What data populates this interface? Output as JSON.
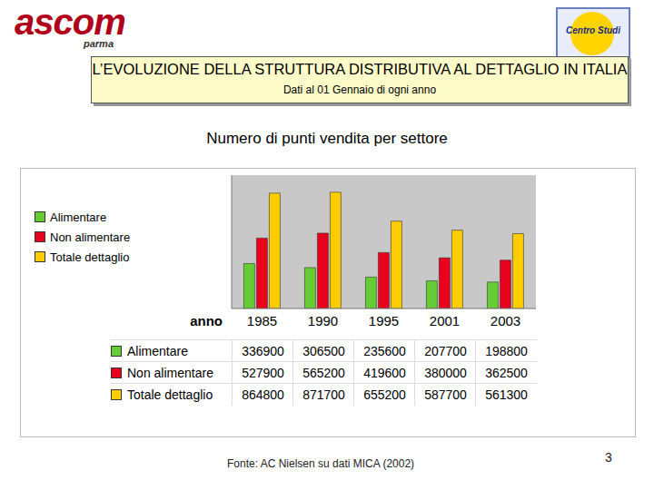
{
  "header": {
    "logo_left": "ascom",
    "logo_left_sub": "parma",
    "logo_right": "Centro Studi",
    "title": "L’EVOLUZIONE DELLA STRUTTURA DISTRIBUTIVA AL DETTAGLIO IN ITALIA",
    "subtitle": "Dati al 01 Gennaio di ogni anno"
  },
  "chart_data": {
    "type": "bar",
    "title": "Numero di punti vendita per settore",
    "categories": [
      "1985",
      "1990",
      "1995",
      "2001",
      "2003"
    ],
    "series": [
      {
        "name": "Alimentare",
        "color": "#66cc33",
        "values": [
          336900,
          306500,
          235600,
          207700,
          198800
        ]
      },
      {
        "name": "Non alimentare",
        "color": "#e8001c",
        "values": [
          527900,
          565200,
          419600,
          380000,
          362500
        ]
      },
      {
        "name": "Totale dettaglio",
        "color": "#ffcc00",
        "values": [
          864800,
          871700,
          655200,
          587700,
          561300
        ]
      }
    ],
    "ylim": [
      0,
      1000000
    ],
    "yticks": [
      0,
      250000,
      500000,
      750000,
      1000000
    ],
    "tick_labels": "x",
    "legend": "top-left",
    "grid": false
  },
  "table": {
    "corner": "anno"
  },
  "footer": {
    "source": "Fonte: AC Nielsen su dati MICA (2002)",
    "page": "3"
  }
}
